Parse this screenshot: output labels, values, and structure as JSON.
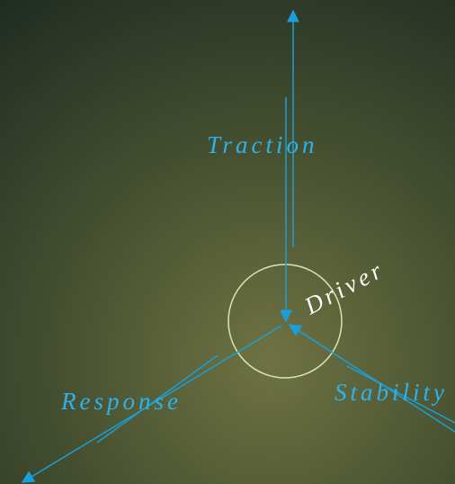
{
  "nodes": [
    {
      "label": "Traction"
    },
    {
      "label": "Driver"
    },
    {
      "label": "Response"
    },
    {
      "label": "Stability"
    }
  ]
}
